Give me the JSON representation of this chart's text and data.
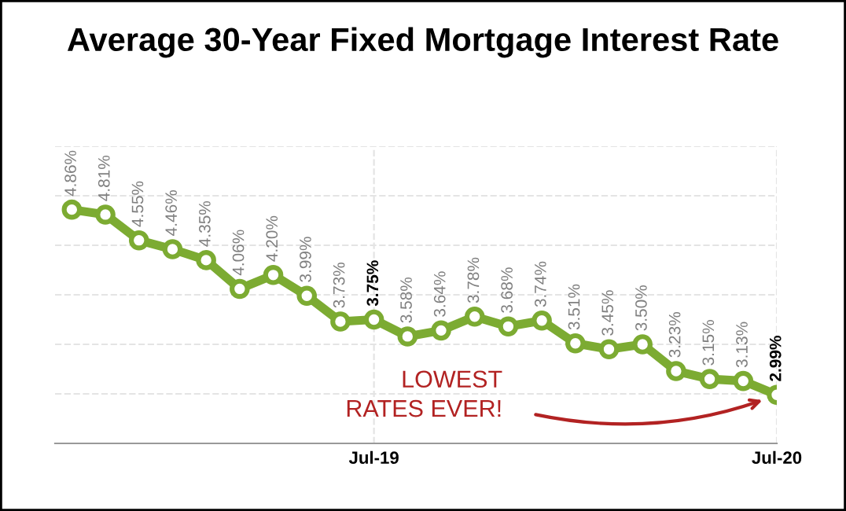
{
  "chart_data": {
    "type": "line",
    "title": "Average 30-Year Fixed Mortgage Interest Rate",
    "categories": [
      null,
      null,
      null,
      null,
      null,
      null,
      null,
      null,
      null,
      "Jul-19",
      null,
      null,
      null,
      null,
      null,
      null,
      null,
      null,
      null,
      null,
      null,
      "Jul-20"
    ],
    "series": [
      {
        "color": "#7cab32",
        "values": [
          4.86,
          4.81,
          4.55,
          4.46,
          4.35,
          4.06,
          4.2,
          3.99,
          3.73,
          3.75,
          3.58,
          3.64,
          3.78,
          3.68,
          3.74,
          3.51,
          3.45,
          3.5,
          3.23,
          3.15,
          3.13,
          2.99
        ],
        "value_labels": [
          "4.86%",
          "4.81%",
          "4.55%",
          "4.46%",
          "4.35%",
          "4.06%",
          "4.20%",
          "3.99%",
          "3.73%",
          "3.75%",
          "3.58%",
          "3.64%",
          "3.78%",
          "3.68%",
          "3.74%",
          "3.51%",
          "3.45%",
          "3.50%",
          "3.23%",
          "3.15%",
          "3.13%",
          "2.99%"
        ]
      }
    ],
    "ylim": [
      2.5,
      5.5
    ],
    "yticks": [
      {
        "value": 3,
        "label": null
      },
      {
        "value": 3.5,
        "label": null
      },
      {
        "value": 4,
        "label": null
      },
      {
        "value": 4.5,
        "label": null
      },
      {
        "value": 5,
        "label": null
      },
      {
        "value": 5.5,
        "label": null
      }
    ],
    "tick_labels": "x",
    "grid": true,
    "marker": "circle",
    "line_style": "solid",
    "legend": false,
    "annotations": [
      "LOWEST\nRATES EVER!"
    ]
  }
}
